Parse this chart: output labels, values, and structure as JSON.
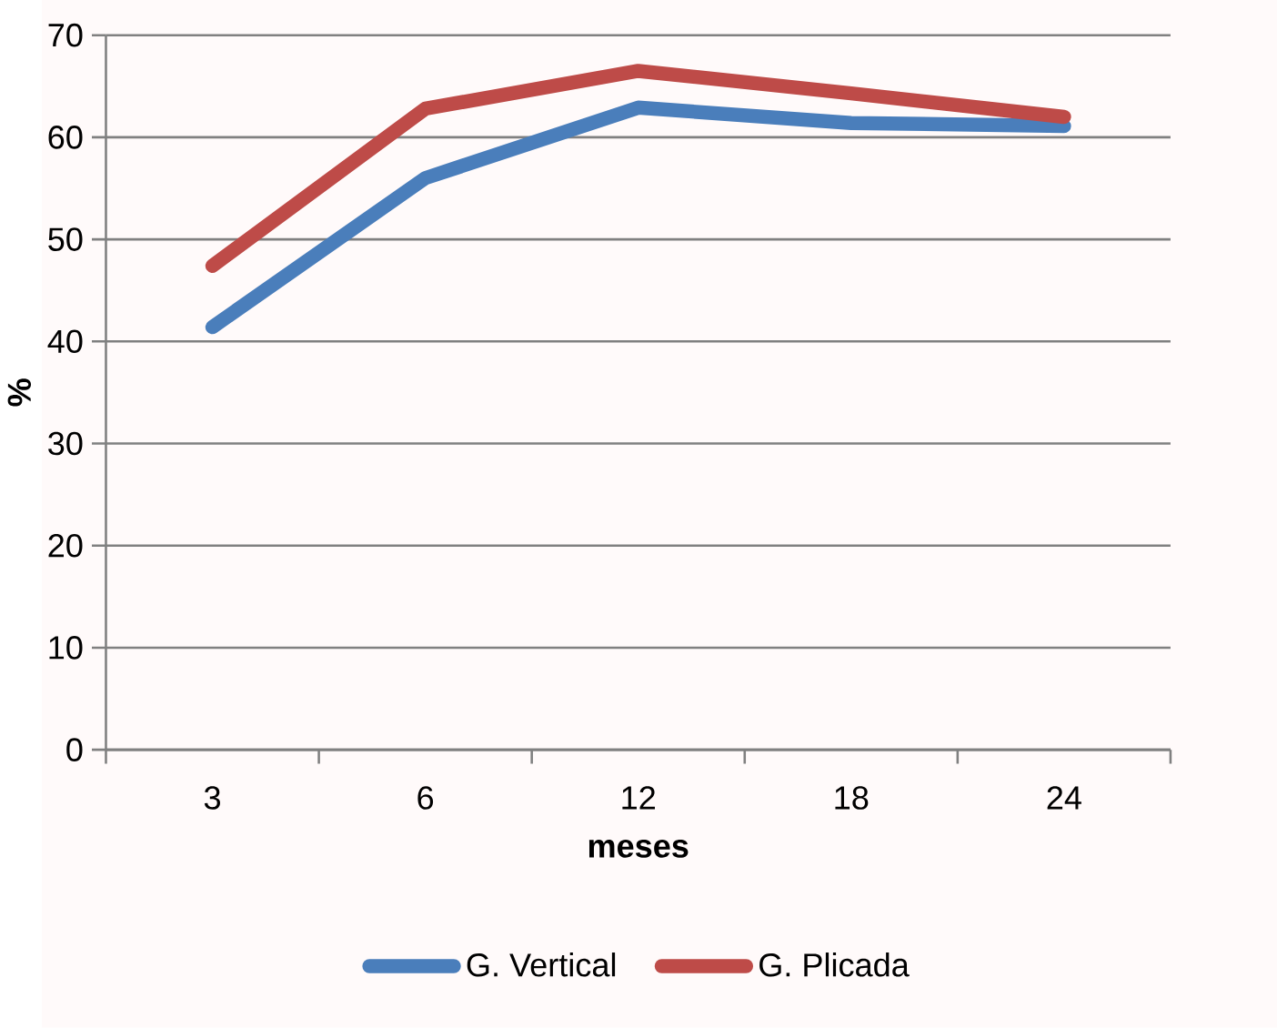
{
  "chart_data": {
    "type": "line",
    "xlabel": "meses",
    "ylabel": "%",
    "categories": [
      "3",
      "6",
      "12",
      "18",
      "24"
    ],
    "series": [
      {
        "name": "G. Vertical",
        "color": "#4a7ebb",
        "values": [
          41.4,
          56.0,
          62.9,
          61.4,
          61.1
        ]
      },
      {
        "name": "G. Plicada",
        "color": "#be4b48",
        "values": [
          47.4,
          62.8,
          66.5,
          64.3,
          62.0
        ]
      }
    ],
    "ylim": [
      0,
      70
    ],
    "yticks": [
      0,
      10,
      20,
      30,
      40,
      50,
      60,
      70
    ],
    "grid": "y",
    "legend": "bottom"
  }
}
